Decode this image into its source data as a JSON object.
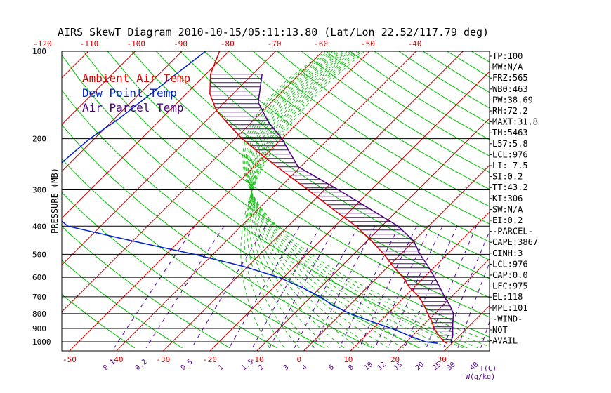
{
  "colors": {
    "ambient": "#e00000",
    "dewpoint": "#0020d0",
    "parcel": "#4a0080",
    "dryAdiabat": "#00c000",
    "moistAdiabat": "#20c020",
    "mixing": "#5500aa",
    "isotherm": "#d00000",
    "frame": "#000000"
  },
  "chart_data": {
    "type": "line",
    "title": "AIRS SkewT Diagram 2010-10-15/05:11:13.80 (Lat/Lon 22.52/117.79 deg)",
    "ylabel": "PRESSURE (MB)",
    "xlabel": "T(C)",
    "mixing_unit": "W(g/kg)",
    "pressure_ticks": [
      100,
      200,
      300,
      400,
      500,
      600,
      700,
      800,
      900,
      1000
    ],
    "pressure_range": [
      100,
      1050
    ],
    "temp_range_bottom": [
      -50,
      40
    ],
    "bottom_temp_ticks": [
      -50,
      -40,
      -30,
      -20,
      -10,
      0,
      10,
      20,
      30
    ],
    "top_temp_ticks": [
      -120,
      -110,
      -100,
      -90,
      -80,
      -70,
      -60,
      -50,
      -40
    ],
    "mixing_ratio_labels": [
      "0.1",
      "0.2",
      "0.5",
      "1",
      "1.5",
      "2",
      "3",
      "4",
      "6",
      "8",
      "10",
      "12",
      "15",
      "20",
      "25",
      "30",
      "40"
    ],
    "mixing_ratio_values": [
      0.1,
      0.2,
      0.5,
      1,
      1.5,
      2,
      3,
      4,
      6,
      8,
      10,
      12,
      15,
      20,
      25,
      30,
      40
    ],
    "legend": [
      "Ambient Air Temp",
      "Dew Point Temp",
      "Air Parcel Temp"
    ],
    "series": [
      {
        "name": "Ambient Air Temp",
        "pressure": [
          100,
          120,
          140,
          160,
          180,
          200,
          225,
          250,
          275,
          300,
          350,
          400,
          450,
          500,
          550,
          600,
          650,
          700,
          750,
          800,
          850,
          900,
          950,
          1000,
          1013
        ],
        "temperature": [
          -82,
          -79,
          -75,
          -70,
          -64,
          -58.5,
          -51.5,
          -45,
          -39,
          -33.5,
          -24,
          -15.5,
          -9,
          -3.5,
          1,
          5.5,
          9,
          13,
          16,
          18.5,
          21,
          23,
          25.5,
          28,
          29
        ]
      },
      {
        "name": "Dew Point Temp",
        "pressure": [
          100,
          130,
          170,
          200,
          250,
          300,
          350,
          400,
          450,
          500,
          550,
          600,
          650,
          700,
          750,
          800,
          850,
          900,
          950,
          1000,
          1013
        ],
        "temperature": [
          -85,
          -87,
          -89,
          -91,
          -92,
          -92,
          -85,
          -77,
          -60,
          -44,
          -31,
          -21,
          -14,
          -8,
          -3.5,
          2,
          8,
          14,
          19,
          24,
          27
        ]
      },
      {
        "name": "Air Parcel Temp",
        "pressure": [
          120,
          150,
          175,
          200,
          225,
          250,
          300,
          350,
          400,
          450,
          500,
          550,
          600,
          650,
          700,
          750,
          800,
          850,
          900,
          950,
          1000,
          1013
        ],
        "temperature": [
          -68,
          -62.8,
          -56.5,
          -50,
          -45,
          -40.5,
          -27,
          -16,
          -6.5,
          0,
          4.2,
          8.5,
          12.2,
          15.5,
          18.5,
          21.5,
          24,
          25.5,
          27,
          28.5,
          29.5,
          30
        ]
      }
    ]
  },
  "indices": [
    "TP:100",
    "MW:N/A",
    "FRZ:565",
    "WB0:463",
    "PW:38.69",
    "RH:72.2",
    "MAXT:31.8",
    "TH:5463",
    "L57:5.8",
    "LCL:976",
    "LI:-7.5",
    "SI:0.2",
    "TT:43.2",
    "KI:306",
    "SW:N/A",
    "EI:0.2",
    "-PARCEL-",
    "CAPE:3867",
    "CINH:3",
    "LCL:976",
    "CAP:0.0",
    "LFC:975",
    "EL:118",
    "MPL:101",
    "-WIND-",
    "NOT",
    "AVAIL"
  ]
}
